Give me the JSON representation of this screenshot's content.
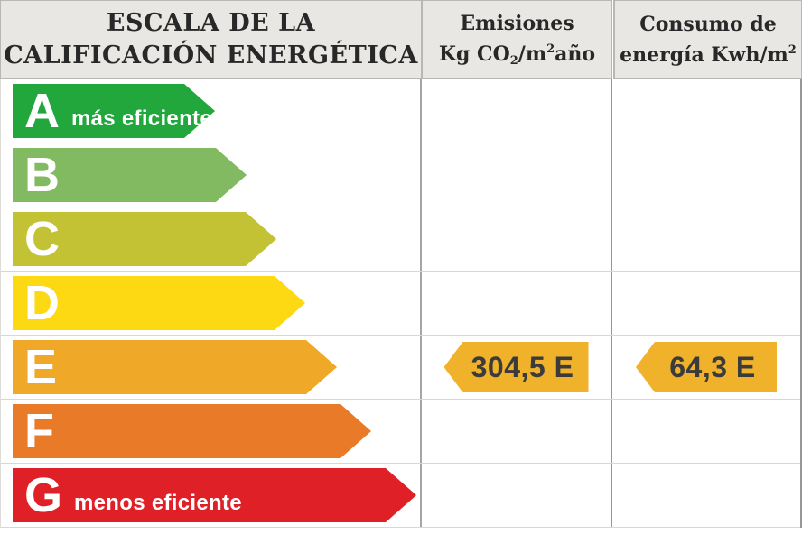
{
  "header": {
    "title": "ESCALA DE LA CALIFICACIÓN ENERGÉTICA",
    "emissions": {
      "line1": "Emisiones",
      "l2a": "Kg CO",
      "l2sub": "2",
      "l2b": "/m",
      "l2sup": "2",
      "l2c": "año"
    },
    "consumption": {
      "line1": "Consumo de",
      "l2a": "energía Kwh/m",
      "l2sup": "2"
    }
  },
  "ratings": [
    {
      "letter": "A",
      "label": "más eficiente",
      "color": "#22a73c"
    },
    {
      "letter": "B",
      "label": "",
      "color": "#82ba62"
    },
    {
      "letter": "C",
      "label": "",
      "color": "#c2c234"
    },
    {
      "letter": "D",
      "label": "",
      "color": "#fcd913"
    },
    {
      "letter": "E",
      "label": "",
      "color": "#efa827"
    },
    {
      "letter": "F",
      "label": "",
      "color": "#e87a28"
    },
    {
      "letter": "G",
      "label": "menos eficiente",
      "color": "#df2127"
    }
  ],
  "values": {
    "emissions": {
      "text": "304,5 E",
      "color": "#f0b22a"
    },
    "consumption": {
      "text": "64,3 E",
      "color": "#f0b22a"
    }
  },
  "chart_data": {
    "type": "bar",
    "title": "ESCALA DE LA CALIFICACIÓN ENERGÉTICA",
    "categories": [
      "A",
      "B",
      "C",
      "D",
      "E",
      "F",
      "G"
    ],
    "category_notes": {
      "A": "más eficiente",
      "G": "menos eficiente"
    },
    "bar_colors": [
      "#22a73c",
      "#82ba62",
      "#c2c234",
      "#fcd913",
      "#efa827",
      "#e87a28",
      "#df2127"
    ],
    "series": [
      {
        "name": "Emisiones Kg CO2/m2 año",
        "value": 304.5,
        "rating": "E",
        "value_text": "304,5 E"
      },
      {
        "name": "Consumo de energía Kwh/m2",
        "value": 64.3,
        "rating": "E",
        "value_text": "64,3 E"
      }
    ],
    "legend_position": "none",
    "grid": true
  }
}
